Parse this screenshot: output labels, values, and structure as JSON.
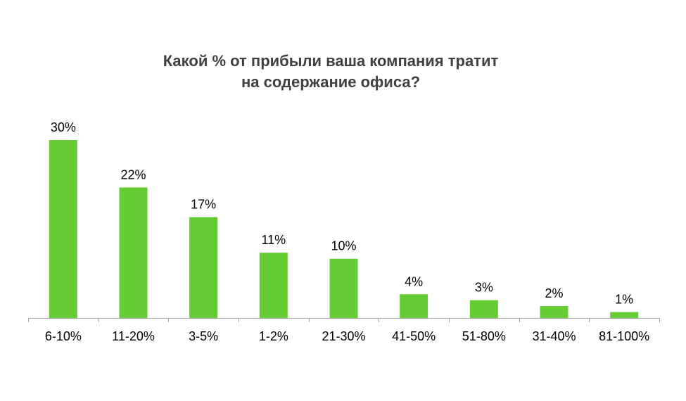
{
  "chart_data": {
    "type": "bar",
    "title_lines": [
      "Какой %  от прибыли ваша компания тратит",
      "на содержание офиса?"
    ],
    "categories": [
      "6-10%",
      "11-20%",
      "3-5%",
      "1-2%",
      "21-30%",
      "41-50%",
      "51-80%",
      "31-40%",
      "81-100%"
    ],
    "values": [
      30,
      22,
      17,
      11,
      10,
      4,
      3,
      2,
      1
    ],
    "value_labels": [
      "30%",
      "22%",
      "17%",
      "11%",
      "10%",
      "4%",
      "3%",
      "2%",
      "1%"
    ],
    "ylim": [
      0,
      30
    ],
    "xlabel": "",
    "ylabel": "",
    "grid": false,
    "legend": "none",
    "bar_color": "#66CC33",
    "axis_color": "#A6A6A6"
  }
}
